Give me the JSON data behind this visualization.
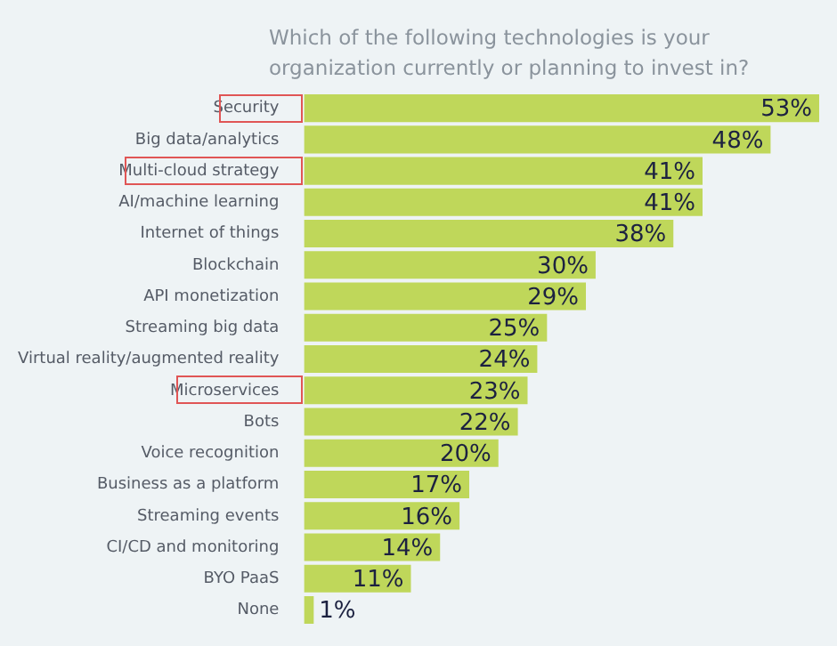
{
  "chart_data": {
    "type": "bar",
    "orientation": "horizontal",
    "title": "Which of the following technologies is your organization currently or planning to invest in?",
    "categories": [
      "Security",
      "Big data/analytics",
      "Multi-cloud strategy",
      "AI/machine learning",
      "Internet of things",
      "Blockchain",
      "API monetization",
      "Streaming big data",
      "Virtual reality/augmented reality",
      "Microservices",
      "Bots",
      "Voice recognition",
      "Business as a platform",
      "Streaming events",
      "CI/CD and monitoring",
      "BYO PaaS",
      "None"
    ],
    "values": [
      53,
      48,
      41,
      41,
      38,
      30,
      29,
      25,
      24,
      23,
      22,
      20,
      17,
      16,
      14,
      11,
      1
    ],
    "value_labels": [
      "53%",
      "48%",
      "41%",
      "41%",
      "38%",
      "30%",
      "29%",
      "25%",
      "24%",
      "23%",
      "22%",
      "20%",
      "17%",
      "16%",
      "14%",
      "11%",
      "1%"
    ],
    "color": "#bfd75a",
    "legend": false
  }
}
